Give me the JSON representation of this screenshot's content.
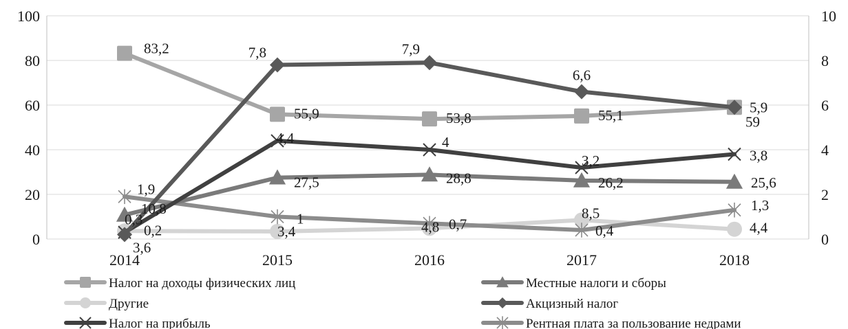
{
  "chart_data": {
    "type": "line",
    "title": "",
    "x": [
      "2014",
      "2015",
      "2016",
      "2017",
      "2018"
    ],
    "y_left": {
      "ylim": [
        0,
        100
      ],
      "ticks": [
        "0",
        "20",
        "40",
        "60",
        "80",
        "100"
      ]
    },
    "y_right": {
      "ylim": [
        0,
        10
      ],
      "ticks": [
        "0",
        "2",
        "4",
        "6",
        "8",
        "10"
      ]
    },
    "grid": "horizontal",
    "legend_position": "bottom",
    "series": [
      {
        "name": "Налог на доходы физических лиц",
        "axis": "left",
        "marker": "square",
        "color": "#a6a6a6",
        "values": [
          83.2,
          55.9,
          53.8,
          55.1,
          59
        ],
        "labels": [
          "83,2",
          "55,9",
          "53,8",
          "55,1",
          "59"
        ]
      },
      {
        "name": "Местные налоги и сборы",
        "axis": "left",
        "marker": "triangle",
        "color": "#7a7a7a",
        "values": [
          10.8,
          27.5,
          28.8,
          26.2,
          25.6
        ],
        "labels": [
          "10,8",
          "27,5",
          "28,8",
          "26,2",
          "25,6"
        ]
      },
      {
        "name": "Другие",
        "axis": "left",
        "marker": "circle",
        "color": "#d4d4d4",
        "values": [
          3.6,
          3.4,
          4.8,
          8.5,
          4.4
        ],
        "labels": [
          "3,6",
          "3,4",
          "4,8",
          "8,5",
          "4,4"
        ]
      },
      {
        "name": "Акцизный налог",
        "axis": "right",
        "marker": "diamond",
        "color": "#595959",
        "values": [
          0.2,
          7.8,
          7.9,
          6.6,
          5.9
        ],
        "labels": [
          "0,2",
          "7,8",
          "7,9",
          "6,6",
          "5,9"
        ]
      },
      {
        "name": "Налог на прибыль",
        "axis": "right",
        "marker": "x",
        "color": "#404040",
        "values": [
          0.3,
          4.4,
          4,
          3.2,
          3.8
        ],
        "labels": [
          "0,3",
          "4,4",
          "4",
          "3,2",
          "3,8"
        ]
      },
      {
        "name": "Рентная плата за пользование недрами",
        "axis": "right",
        "marker": "star",
        "color": "#8c8c8c",
        "values": [
          1.9,
          1,
          0.7,
          0.4,
          1.3
        ],
        "labels": [
          "1,9",
          "1",
          "0,7",
          "0,4",
          "1,3"
        ]
      }
    ]
  }
}
